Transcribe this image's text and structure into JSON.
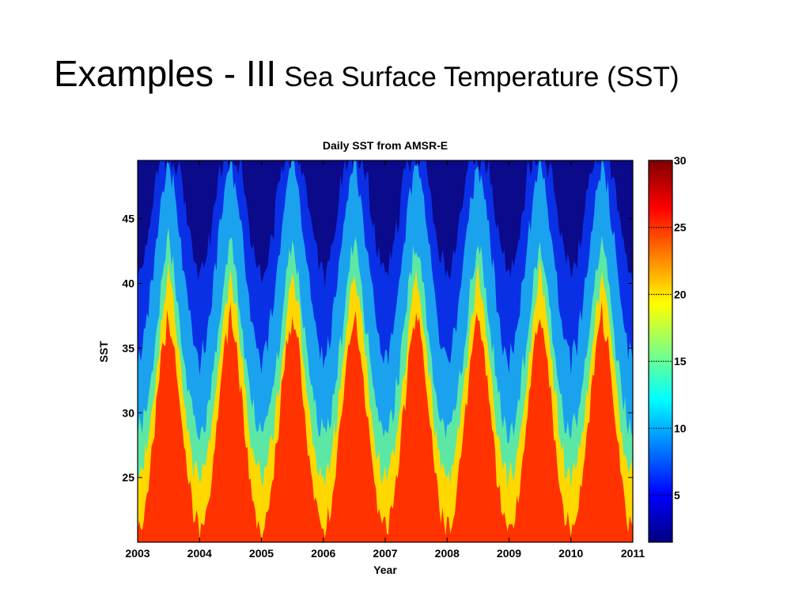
{
  "slide": {
    "title": "Examples  - III",
    "subtitle": "Sea Surface Temperature (SST)"
  },
  "chart_data": {
    "type": "heatmap",
    "title": "Daily SST from AMSR-E",
    "xlabel": "Year",
    "ylabel": "SST",
    "x_ticks": [
      "2003",
      "2004",
      "2005",
      "2006",
      "2007",
      "2008",
      "2009",
      "2010",
      "2011"
    ],
    "xlim": [
      2003,
      2011
    ],
    "y_ticks": [
      25,
      30,
      35,
      40,
      45
    ],
    "ylim": [
      20,
      49.5
    ],
    "grid": false,
    "colorbar": {
      "ticks": [
        5,
        10,
        15,
        20,
        25,
        30
      ],
      "range": [
        1.5,
        30
      ],
      "colormap": "jet"
    },
    "levels": [
      {
        "label": "< 5",
        "color": "#0a0a8a"
      },
      {
        "label": "5-10",
        "color": "#0a30e6"
      },
      {
        "label": "10-15",
        "color": "#1aa2ee"
      },
      {
        "label": "15-20",
        "color": "#5ce8a4"
      },
      {
        "label": "20-25",
        "color": "#ffd800"
      },
      {
        "label": "> 25",
        "color": "#ff3200"
      }
    ],
    "boundaries_by_year_fraction": {
      "phase": [
        0.0,
        0.1,
        0.2,
        0.3,
        0.4,
        0.5,
        0.6,
        0.7,
        0.8,
        0.9,
        1.0
      ],
      "t25": [
        21,
        22,
        25.5,
        30,
        35,
        37.5,
        35,
        30,
        25.5,
        22,
        21
      ],
      "t20": [
        25,
        26,
        29,
        33,
        37.5,
        41,
        38,
        33.5,
        29,
        26,
        25
      ],
      "t15": [
        28.5,
        29.5,
        32.5,
        36,
        40.5,
        43.5,
        40.5,
        36,
        32.5,
        29.5,
        28.5
      ],
      "t10": [
        34,
        35.5,
        39,
        43,
        47,
        49.5,
        47,
        43,
        39,
        35.5,
        34
      ],
      "t5": [
        40.5,
        42,
        44.5,
        48.5,
        49.5,
        49.5,
        49.5,
        48.5,
        44.5,
        42,
        40.5
      ]
    }
  }
}
